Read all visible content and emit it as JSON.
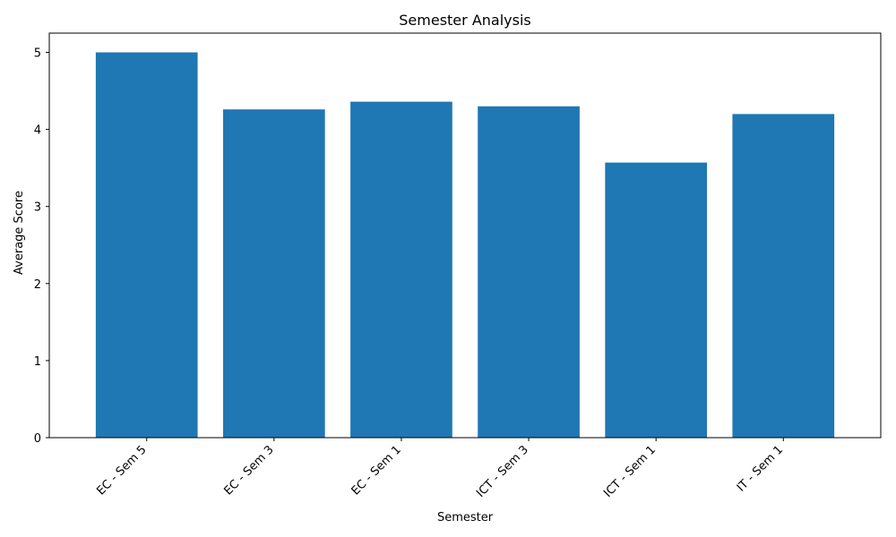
{
  "chart_data": {
    "type": "bar",
    "title": "Semester Analysis",
    "xlabel": "Semester",
    "ylabel": "Average Score",
    "categories": [
      "EC - Sem 5",
      "EC - Sem 3",
      "EC - Sem 1",
      "ICT - Sem 3",
      "ICT - Sem 1",
      "IT - Sem 1"
    ],
    "values": [
      5.0,
      4.26,
      4.36,
      4.3,
      3.57,
      4.2
    ],
    "ylim": [
      0,
      5.25
    ],
    "yticks": [
      0,
      1,
      2,
      3,
      4,
      5
    ],
    "grid": false,
    "legend": "none",
    "bar_color": "#1f77b4"
  }
}
